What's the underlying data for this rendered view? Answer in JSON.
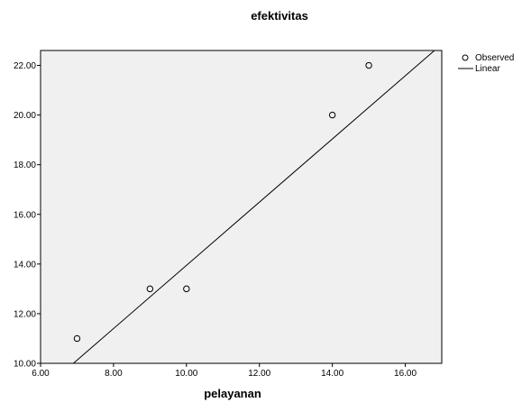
{
  "chart_data": {
    "type": "scatter",
    "title": "efektivitas",
    "xlabel": "pelayanan",
    "ylabel": "",
    "xlim": [
      6,
      17
    ],
    "ylim": [
      10,
      22.6
    ],
    "xticks": [
      "6.00",
      "8.00",
      "10.00",
      "12.00",
      "14.00",
      "16.00"
    ],
    "yticks": [
      "10.00",
      "12.00",
      "14.00",
      "16.00",
      "18.00",
      "20.00",
      "22.00"
    ],
    "plot_background": "#f0f0f0",
    "grid": false,
    "legend_position": "top-right",
    "series": [
      {
        "name": "Observed",
        "kind": "points",
        "marker": "open-circle",
        "x": [
          7,
          9,
          10,
          14,
          15
        ],
        "y": [
          11,
          13,
          13,
          20,
          22
        ]
      },
      {
        "name": "Linear",
        "kind": "line",
        "x": [
          6.9,
          16.8
        ],
        "y": [
          10,
          22.6
        ]
      }
    ]
  }
}
